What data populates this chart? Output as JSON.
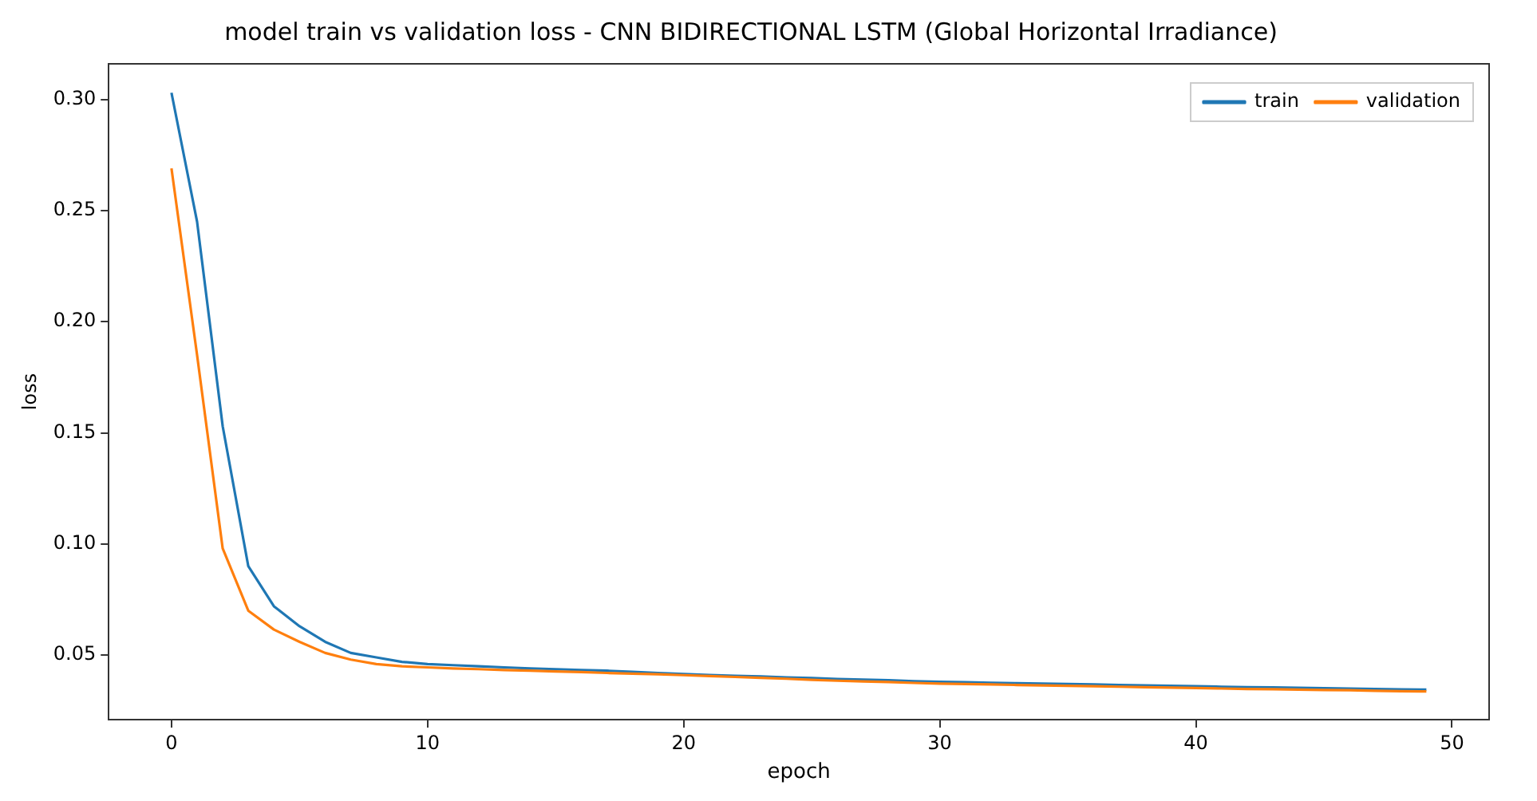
{
  "chart_data": {
    "type": "line",
    "title": "model train vs validation loss - CNN BIDIRECTIONAL LSTM (Global Horizontal Irradiance)",
    "xlabel": "epoch",
    "ylabel": "loss",
    "x": [
      0,
      1,
      2,
      3,
      4,
      5,
      6,
      7,
      8,
      9,
      10,
      11,
      12,
      13,
      14,
      15,
      16,
      17,
      18,
      19,
      20,
      21,
      22,
      23,
      24,
      25,
      26,
      27,
      28,
      29,
      30,
      31,
      32,
      33,
      34,
      35,
      36,
      37,
      38,
      39,
      40,
      41,
      42,
      43,
      44,
      45,
      46,
      47,
      48,
      49
    ],
    "series": [
      {
        "name": "train",
        "color": "#1f77b4",
        "values": [
          0.303,
          0.245,
          0.153,
          0.09,
          0.072,
          0.063,
          0.056,
          0.051,
          0.049,
          0.047,
          0.046,
          0.0455,
          0.045,
          0.0445,
          0.044,
          0.0437,
          0.0433,
          0.043,
          0.0425,
          0.042,
          0.0415,
          0.0411,
          0.0407,
          0.0404,
          0.04,
          0.0397,
          0.0393,
          0.039,
          0.0387,
          0.0383,
          0.038,
          0.0378,
          0.0376,
          0.0374,
          0.0372,
          0.037,
          0.0368,
          0.0366,
          0.0364,
          0.0362,
          0.036,
          0.0358,
          0.0356,
          0.0355,
          0.0353,
          0.0351,
          0.035,
          0.0348,
          0.0346,
          0.0345
        ]
      },
      {
        "name": "validation",
        "color": "#ff7f0e",
        "values": [
          0.269,
          0.185,
          0.098,
          0.07,
          0.0615,
          0.056,
          0.051,
          0.048,
          0.046,
          0.045,
          0.0445,
          0.044,
          0.0437,
          0.0433,
          0.043,
          0.0427,
          0.0424,
          0.042,
          0.0417,
          0.0414,
          0.041,
          0.0406,
          0.0402,
          0.0398,
          0.0394,
          0.0389,
          0.0385,
          0.0382,
          0.0379,
          0.0375,
          0.0372,
          0.037,
          0.0368,
          0.0366,
          0.0364,
          0.0362,
          0.036,
          0.0358,
          0.0356,
          0.0354,
          0.0352,
          0.035,
          0.0348,
          0.0347,
          0.0345,
          0.0343,
          0.0342,
          0.034,
          0.0338,
          0.0337
        ]
      }
    ],
    "xlim": [
      -2.45,
      51.45
    ],
    "xticks": [
      0,
      10,
      20,
      30,
      40,
      50
    ],
    "ylim": [
      0.021,
      0.316
    ],
    "yticks": [
      {
        "value": 0.05,
        "label": "0.05"
      },
      {
        "value": 0.1,
        "label": "0.10"
      },
      {
        "value": 0.15,
        "label": "0.15"
      },
      {
        "value": 0.2,
        "label": "0.20"
      },
      {
        "value": 0.25,
        "label": "0.25"
      },
      {
        "value": 0.3,
        "label": "0.30"
      }
    ],
    "legend": "top right",
    "grid": false,
    "marker": "none",
    "line_style": "solid"
  }
}
